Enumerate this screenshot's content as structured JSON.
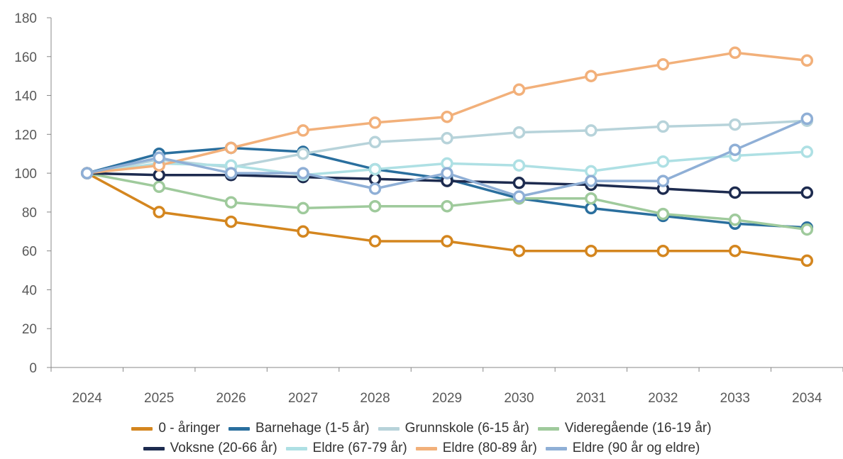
{
  "chart_data": {
    "type": "line",
    "title": "",
    "xlabel": "",
    "ylabel": "",
    "ylim": [
      0,
      180
    ],
    "yticks": [
      0,
      20,
      40,
      60,
      80,
      100,
      120,
      140,
      160,
      180
    ],
    "grid": false,
    "legend_position": "bottom",
    "categories": [
      "2024",
      "2025",
      "2026",
      "2027",
      "2028",
      "2029",
      "2030",
      "2031",
      "2032",
      "2033",
      "2034"
    ],
    "series": [
      {
        "name": "0 - åringer",
        "color": "#d4861f",
        "values": [
          100,
          80,
          75,
          70,
          65,
          65,
          60,
          60,
          60,
          60,
          55
        ]
      },
      {
        "name": "Barnehage (1-5 år)",
        "color": "#2a6f9e",
        "values": [
          100,
          110,
          113,
          111,
          102,
          97,
          87,
          82,
          78,
          74,
          72
        ]
      },
      {
        "name": "Grunnskole (6-15 år)",
        "color": "#b7d3da",
        "values": [
          100,
          107,
          103,
          110,
          116,
          118,
          121,
          122,
          124,
          125,
          127
        ]
      },
      {
        "name": "Videregående (16-19 år)",
        "color": "#9fca9c",
        "values": [
          100,
          93,
          85,
          82,
          83,
          83,
          87,
          87,
          79,
          76,
          71
        ]
      },
      {
        "name": "Voksne (20-66 år)",
        "color": "#1d2b4f",
        "values": [
          100,
          99,
          99,
          98,
          97,
          96,
          95,
          94,
          92,
          90,
          90
        ]
      },
      {
        "name": "Eldre (67-79 år)",
        "color": "#aee0e4",
        "values": [
          100,
          105,
          104,
          99,
          102,
          105,
          104,
          101,
          106,
          109,
          111
        ]
      },
      {
        "name": "Eldre (80-89 år)",
        "color": "#f2b07a",
        "values": [
          100,
          104,
          113,
          122,
          126,
          129,
          143,
          150,
          156,
          162,
          158
        ]
      },
      {
        "name": "Eldre (90 år og eldre)",
        "color": "#8fafd6",
        "values": [
          100,
          108,
          100,
          100,
          92,
          100,
          88,
          96,
          96,
          112,
          128
        ]
      }
    ]
  }
}
